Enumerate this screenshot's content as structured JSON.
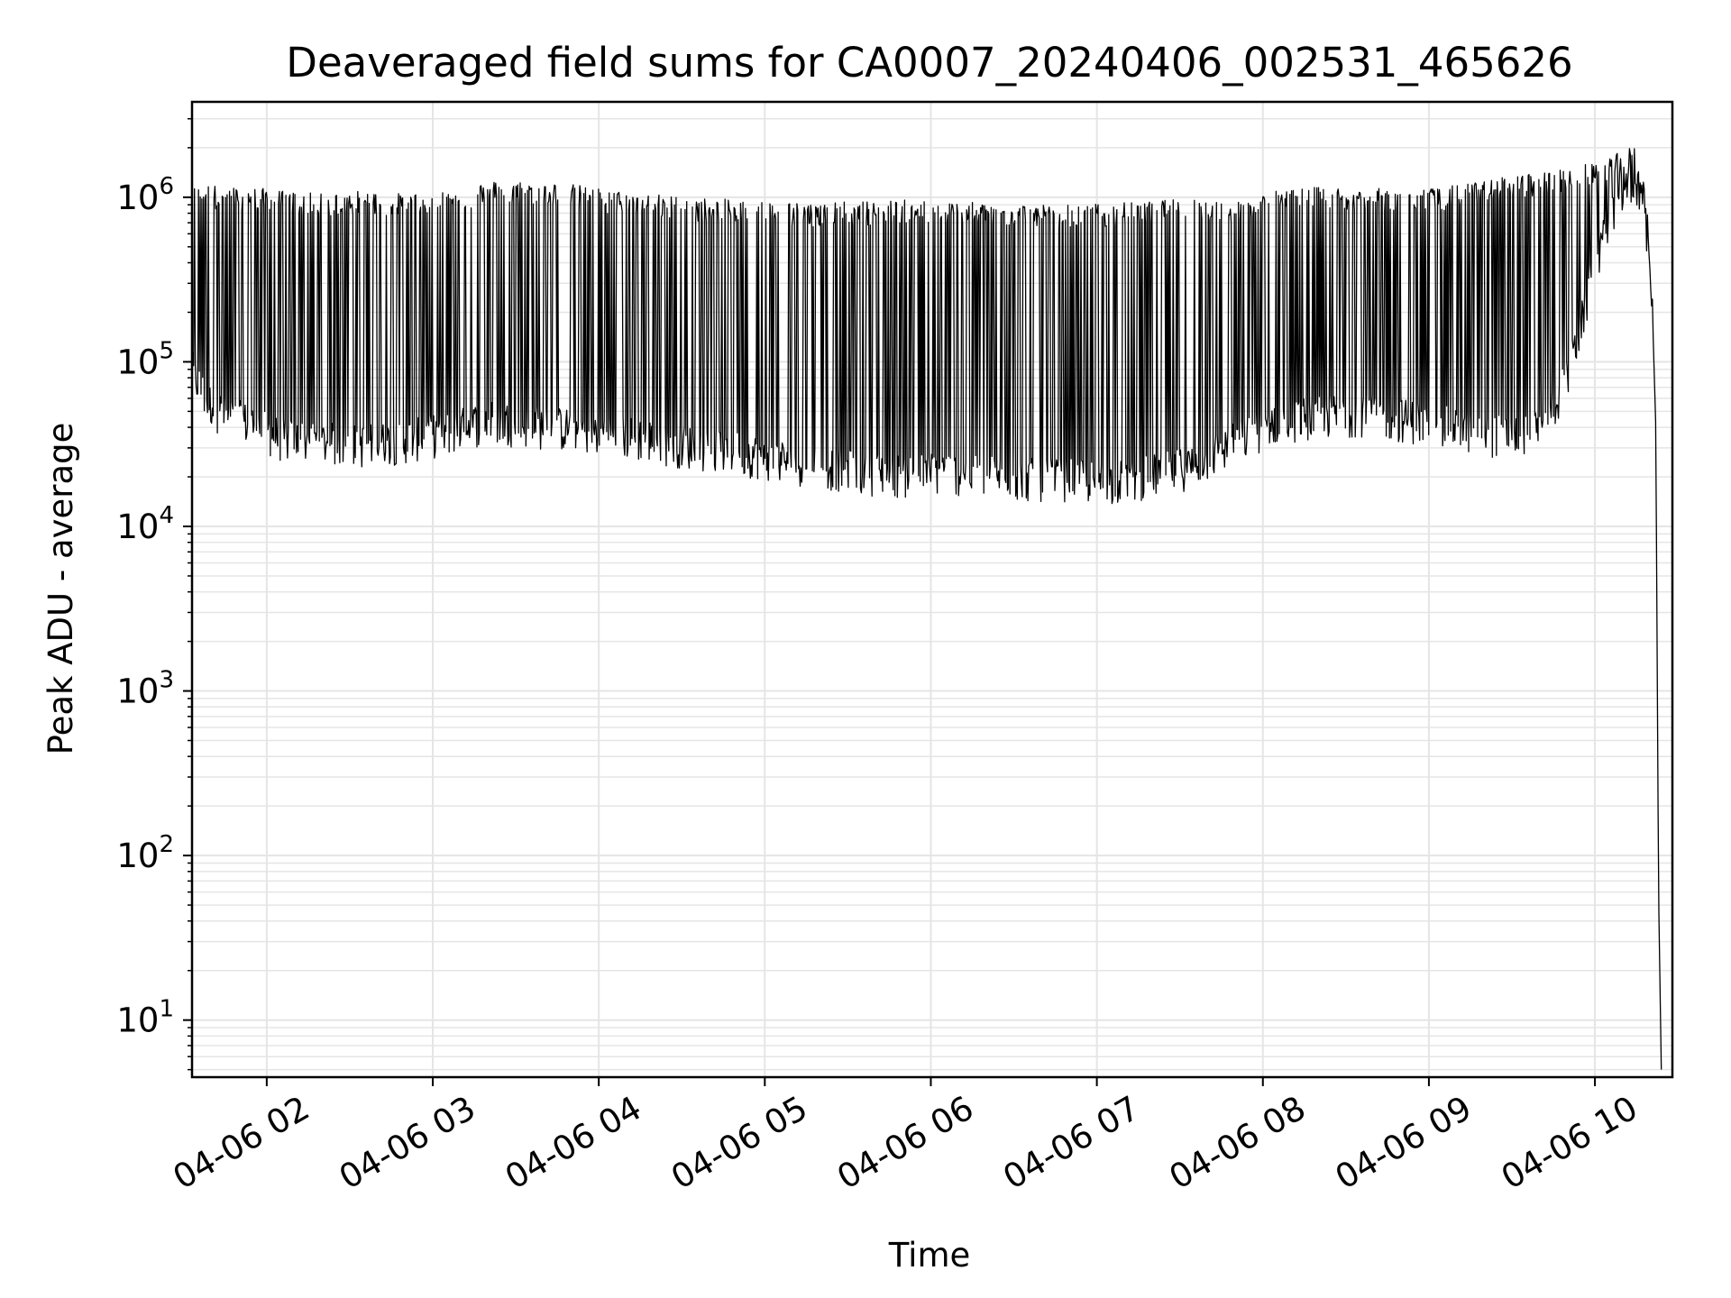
{
  "chart_data": {
    "type": "line",
    "title": "Deaveraged field sums for CA0007_20240406_002531_465626",
    "xlabel": "Time",
    "ylabel": "Peak ADU - average",
    "x_scale": "time",
    "y_scale": "log",
    "xlim": [
      "2024-04-06 01:33",
      "2024-04-06 10:28"
    ],
    "ylim": [
      4.5,
      3800000
    ],
    "x_ticks": [
      {
        "value": "2024-04-06 02:00",
        "label": "04-06 02"
      },
      {
        "value": "2024-04-06 03:00",
        "label": "04-06 03"
      },
      {
        "value": "2024-04-06 04:00",
        "label": "04-06 04"
      },
      {
        "value": "2024-04-06 05:00",
        "label": "04-06 05"
      },
      {
        "value": "2024-04-06 06:00",
        "label": "04-06 06"
      },
      {
        "value": "2024-04-06 07:00",
        "label": "04-06 07"
      },
      {
        "value": "2024-04-06 08:00",
        "label": "04-06 08"
      },
      {
        "value": "2024-04-06 09:00",
        "label": "04-06 09"
      },
      {
        "value": "2024-04-06 10:00",
        "label": "04-06 10"
      }
    ],
    "y_ticks": [
      {
        "value": 10,
        "base": "10",
        "exp": "1"
      },
      {
        "value": 100,
        "base": "10",
        "exp": "2"
      },
      {
        "value": 1000,
        "base": "10",
        "exp": "3"
      },
      {
        "value": 10000,
        "base": "10",
        "exp": "4"
      },
      {
        "value": 100000,
        "base": "10",
        "exp": "5"
      },
      {
        "value": 1000000,
        "base": "10",
        "exp": "6"
      }
    ],
    "grid": true,
    "legend": "none",
    "line_color": "#000000",
    "grid_color": "#e5e5e5",
    "series": [
      {
        "x": [
          "2024-04-06 01:33",
          "2024-04-06 01:38",
          "2024-04-06 01:45",
          "2024-04-06 01:55",
          "2024-04-06 02:05",
          "2024-04-06 02:20",
          "2024-04-06 02:35",
          "2024-04-06 02:50",
          "2024-04-06 03:05",
          "2024-04-06 03:20",
          "2024-04-06 03:35",
          "2024-04-06 03:50",
          "2024-04-06 04:05",
          "2024-04-06 04:20",
          "2024-04-06 04:35",
          "2024-04-06 04:50",
          "2024-04-06 05:05",
          "2024-04-06 05:20",
          "2024-04-06 05:35",
          "2024-04-06 05:50",
          "2024-04-06 06:05",
          "2024-04-06 06:20",
          "2024-04-06 06:35",
          "2024-04-06 06:50",
          "2024-04-06 07:05",
          "2024-04-06 07:20",
          "2024-04-06 07:35",
          "2024-04-06 07:50",
          "2024-04-06 08:05",
          "2024-04-06 08:20",
          "2024-04-06 08:35",
          "2024-04-06 08:50",
          "2024-04-06 09:05",
          "2024-04-06 09:20",
          "2024-04-06 09:30",
          "2024-04-06 09:40",
          "2024-04-06 09:50",
          "2024-04-06 09:56",
          "2024-04-06 10:00",
          "2024-04-06 10:05",
          "2024-04-06 10:10",
          "2024-04-06 10:14",
          "2024-04-06 10:17",
          "2024-04-06 10:19",
          "2024-04-06 10:21",
          "2024-04-06 10:22",
          "2024-04-06 10:23",
          "2024-04-06 10:24"
        ],
        "baseline": [
          90000,
          60000,
          48000,
          42000,
          35000,
          33000,
          32000,
          34000,
          38000,
          45000,
          42000,
          40000,
          37000,
          34000,
          31000,
          29000,
          26000,
          24000,
          22000,
          21000,
          22000,
          21000,
          20000,
          20000,
          19000,
          21000,
          24000,
          33000,
          45000,
          48000,
          50000,
          46000,
          42000,
          38000,
          36000,
          38000,
          80000,
          200000,
          400000,
          700000,
          1000000,
          1300000,
          1100000,
          600000,
          150000,
          40000,
          60,
          5
        ],
        "peak": [
          1100000,
          1150000,
          1100000,
          1100000,
          1050000,
          1000000,
          1050000,
          1000000,
          1050000,
          1200000,
          1200000,
          1150000,
          1050000,
          1000000,
          950000,
          920000,
          900000,
          880000,
          900000,
          920000,
          900000,
          880000,
          870000,
          860000,
          880000,
          900000,
          950000,
          900000,
          1050000,
          1100000,
          1100000,
          1050000,
          1100000,
          1200000,
          1300000,
          1350000,
          1450000,
          1500000,
          1600000,
          1700000,
          1800000,
          2000000,
          1500000,
          700000,
          200000,
          40000,
          60,
          5
        ]
      }
    ]
  }
}
